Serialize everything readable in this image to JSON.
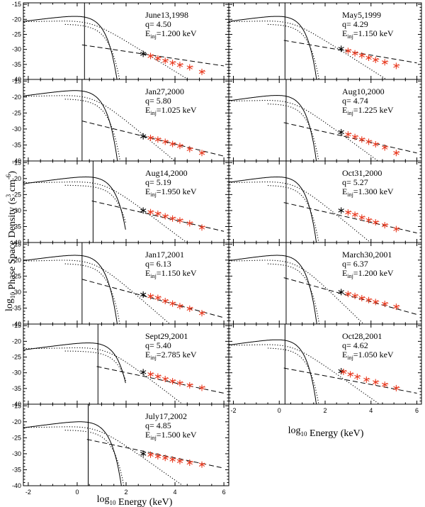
{
  "chart_data": {
    "type": "scatter",
    "xlabel": "log10 Energy (keV)",
    "ylabel": "log10 Phase Space Density (s^3 cm^-6)",
    "xlim": [
      -2.2,
      6.2
    ],
    "ylim": [
      -40,
      -14.5
    ],
    "x_ticks": [
      "-2",
      "0",
      "2",
      "4",
      "6"
    ],
    "y_ticks": [
      "-40",
      "-35",
      "-30",
      "-25",
      "-20",
      "-15"
    ],
    "legend": "none",
    "grid": false,
    "colors": {
      "data_markers": "#e8391f",
      "low_energy_markers": "#000000",
      "lines": "#000000"
    },
    "panels": [
      {
        "date": "June13,1998",
        "q": "q= 4.50",
        "einj_value": "=1.200 keV",
        "inj_energy_log": 0.3,
        "peak_log_energy": -0.1,
        "peak_value": -19,
        "kappa": 4.5,
        "power_law": [
          [
            0.2,
            -28.5
          ],
          [
            6.0,
            -35.5
          ]
        ],
        "data": [
          [
            2.7,
            -31.5
          ],
          [
            3.0,
            -32.2
          ],
          [
            3.3,
            -33
          ],
          [
            3.6,
            -33.8
          ],
          [
            3.9,
            -34.5
          ],
          [
            4.2,
            -35.2
          ],
          [
            4.6,
            -36
          ],
          [
            5.1,
            -37.5
          ]
        ]
      },
      {
        "date": "May5,1999",
        "q": "q= 4.29",
        "einj_value": "=1.150 keV",
        "inj_energy_log": 0.25,
        "peak_log_energy": -0.1,
        "peak_value": -19,
        "kappa": 4.3,
        "power_law": [
          [
            0.2,
            -27
          ],
          [
            6.0,
            -34.5
          ]
        ],
        "data": [
          [
            2.7,
            -29.8
          ],
          [
            3.0,
            -30.5
          ],
          [
            3.3,
            -31.3
          ],
          [
            3.6,
            -32
          ],
          [
            3.9,
            -32.8
          ],
          [
            4.2,
            -33.5
          ],
          [
            4.6,
            -34.3
          ],
          [
            5.1,
            -35.5
          ]
        ]
      },
      {
        "date": "Jan27,2000",
        "q": "q= 5.80",
        "einj_value": "=1.025 keV",
        "inj_energy_log": 0.2,
        "peak_log_energy": -0.1,
        "peak_value": -18,
        "kappa": 5.8,
        "power_law": [
          [
            0.2,
            -27.5
          ],
          [
            6.0,
            -38.5
          ]
        ],
        "data": [
          [
            2.7,
            -32.3
          ],
          [
            3.0,
            -32.8
          ],
          [
            3.3,
            -33.3
          ],
          [
            3.6,
            -34
          ],
          [
            3.9,
            -34.7
          ],
          [
            4.2,
            -35.3
          ],
          [
            4.6,
            -36.3
          ],
          [
            5.1,
            -37.5
          ]
        ]
      },
      {
        "date": "Aug10,2000",
        "q": "q= 4.74",
        "einj_value": "=1.225 keV",
        "inj_energy_log": 0.3,
        "peak_log_energy": -0.1,
        "peak_value": -19.5,
        "kappa": 4.7,
        "power_law": [
          [
            0.2,
            -28
          ],
          [
            6.0,
            -37.5
          ]
        ],
        "data": [
          [
            2.7,
            -31
          ],
          [
            3.0,
            -31.7
          ],
          [
            3.3,
            -32.5
          ],
          [
            3.6,
            -33.3
          ],
          [
            3.9,
            -34
          ],
          [
            4.2,
            -34.8
          ],
          [
            4.6,
            -35.8
          ],
          [
            5.1,
            -37.5
          ]
        ]
      },
      {
        "date": "Aug14,2000",
        "q": "q= 5.19",
        "einj_value": "=1.950 keV",
        "inj_energy_log": 0.65,
        "peak_log_energy": 0.35,
        "peak_value": -19.5,
        "kappa": 5.2,
        "power_law": [
          [
            0.6,
            -27
          ],
          [
            6.0,
            -36.5
          ]
        ],
        "data": [
          [
            2.7,
            -30
          ],
          [
            3.0,
            -30.5
          ],
          [
            3.3,
            -31
          ],
          [
            3.6,
            -31.8
          ],
          [
            3.9,
            -32.5
          ],
          [
            4.2,
            -33.1
          ],
          [
            4.6,
            -34
          ],
          [
            5.1,
            -35.3
          ]
        ]
      },
      {
        "date": "Oct31,2000",
        "q": "q= 5.27",
        "einj_value": "=1.300 keV",
        "inj_energy_log": 0.3,
        "peak_log_energy": -0.1,
        "peak_value": -19.5,
        "kappa": 5.3,
        "power_law": [
          [
            0.2,
            -27.5
          ],
          [
            6.0,
            -37
          ]
        ],
        "data": [
          [
            2.7,
            -30
          ],
          [
            3.0,
            -30.6
          ],
          [
            3.3,
            -31.3
          ],
          [
            3.6,
            -32.2
          ],
          [
            3.9,
            -33
          ],
          [
            4.2,
            -33.7
          ],
          [
            4.6,
            -34.6
          ],
          [
            5.1,
            -35.8
          ]
        ]
      },
      {
        "date": "Jan17,2001",
        "q": "q= 6.13",
        "einj_value": "=1.150 keV",
        "inj_energy_log": 0.2,
        "peak_log_energy": -0.1,
        "peak_value": -18.5,
        "kappa": 6.1,
        "power_law": [
          [
            0.2,
            -26
          ],
          [
            6.0,
            -38
          ]
        ],
        "data": [
          [
            2.7,
            -30.8
          ],
          [
            3.0,
            -31.3
          ],
          [
            3.3,
            -31.8
          ],
          [
            3.6,
            -32.8
          ],
          [
            3.9,
            -33.6
          ],
          [
            4.2,
            -34.4
          ],
          [
            4.6,
            -35.2
          ],
          [
            5.1,
            -36.6
          ]
        ]
      },
      {
        "date": "March30,2001",
        "q": "q= 6.37",
        "einj_value": "=1.200 keV",
        "inj_energy_log": 0.3,
        "peak_log_energy": -0.1,
        "peak_value": -18.5,
        "kappa": 6.4,
        "power_law": [
          [
            0.2,
            -25.5
          ],
          [
            6.0,
            -37
          ]
        ],
        "data": [
          [
            2.7,
            -30
          ],
          [
            3.0,
            -30.6
          ],
          [
            3.3,
            -31.2
          ],
          [
            3.6,
            -31.9
          ],
          [
            3.9,
            -32.5
          ],
          [
            4.2,
            -33.1
          ],
          [
            4.6,
            -33.7
          ],
          [
            5.1,
            -34.6
          ]
        ]
      },
      {
        "date": "Sept29,2001",
        "q": "q= 5.40",
        "einj_value": "=2.785 keV",
        "inj_energy_log": 0.85,
        "peak_log_energy": 0.45,
        "peak_value": -20.5,
        "kappa": 5.4,
        "power_law": [
          [
            0.8,
            -28
          ],
          [
            6.0,
            -36.5
          ]
        ],
        "data": [
          [
            2.7,
            -29.8
          ],
          [
            3.0,
            -30.5
          ],
          [
            3.3,
            -31.2
          ],
          [
            3.6,
            -32
          ],
          [
            3.9,
            -32.7
          ],
          [
            4.2,
            -33.3
          ],
          [
            4.6,
            -34
          ],
          [
            5.1,
            -34.8
          ]
        ]
      },
      {
        "date": "Oct28,2001",
        "q": "q= 4.62",
        "einj_value": "=1.050 keV",
        "inj_energy_log": 0.25,
        "peak_log_energy": -0.1,
        "peak_value": -19.5,
        "kappa": 4.6,
        "power_law": [
          [
            0.2,
            -28.5
          ],
          [
            6.0,
            -36.5
          ]
        ],
        "data": [
          [
            2.7,
            -29.5
          ],
          [
            2.8,
            -29.7
          ],
          [
            3.1,
            -30.5
          ],
          [
            3.4,
            -31.3
          ],
          [
            3.8,
            -32.2
          ],
          [
            4.2,
            -33
          ],
          [
            4.6,
            -33.8
          ],
          [
            5.1,
            -34.9
          ]
        ]
      },
      {
        "date": "July17,2002",
        "q": "q= 4.85",
        "einj_value": "=1.500 keV",
        "inj_energy_log": 0.45,
        "peak_log_energy": 0.1,
        "peak_value": -20,
        "kappa": 4.85,
        "power_law": [
          [
            0.4,
            -25.5
          ],
          [
            6.0,
            -34.5
          ]
        ],
        "data": [
          [
            2.7,
            -30
          ],
          [
            3.0,
            -30.3
          ],
          [
            3.3,
            -30.8
          ],
          [
            3.6,
            -31.3
          ],
          [
            3.9,
            -31.8
          ],
          [
            4.2,
            -32.3
          ],
          [
            4.6,
            -32.8
          ],
          [
            5.1,
            -33.4
          ]
        ]
      }
    ]
  }
}
